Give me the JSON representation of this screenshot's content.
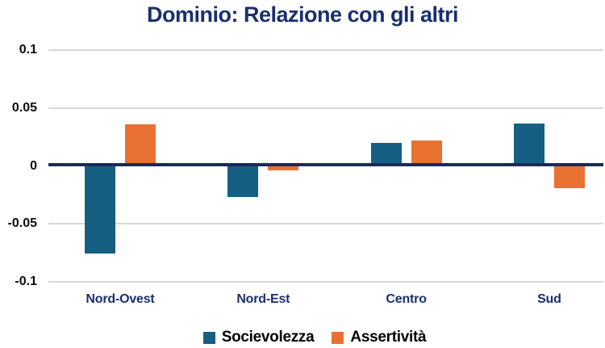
{
  "chart_data": {
    "type": "bar",
    "title": "Dominio: Relazione con gli altri",
    "categories": [
      "Nord-Ovest",
      "Nord-Est",
      "Centro",
      "Sud"
    ],
    "series": [
      {
        "name": "Socievolezza",
        "color": "#156082",
        "values": [
          -0.076,
          -0.027,
          0.02,
          0.037
        ]
      },
      {
        "name": "Assertività",
        "color": "#E97132",
        "values": [
          0.036,
          -0.004,
          0.022,
          -0.019
        ]
      }
    ],
    "y_ticks": [
      {
        "label": "0.1",
        "value": 0.1
      },
      {
        "label": "0.05",
        "value": 0.05
      },
      {
        "label": "0",
        "value": 0
      },
      {
        "label": "-0.05",
        "value": -0.05
      },
      {
        "label": "-0.1",
        "value": -0.1
      }
    ],
    "ylim": [
      -0.1,
      0.1
    ],
    "grid": true,
    "legend_position": "bottom",
    "xlabel": "",
    "ylabel": ""
  },
  "colors": {
    "title": "#1B2F6E",
    "category_label": "#1B2F6E",
    "tick_label": "#0D0D0D",
    "gridline": "#D9D9D9",
    "axis_line": "#1A2A5F",
    "legend_text": "#000000",
    "background": "#FFFFFF"
  }
}
